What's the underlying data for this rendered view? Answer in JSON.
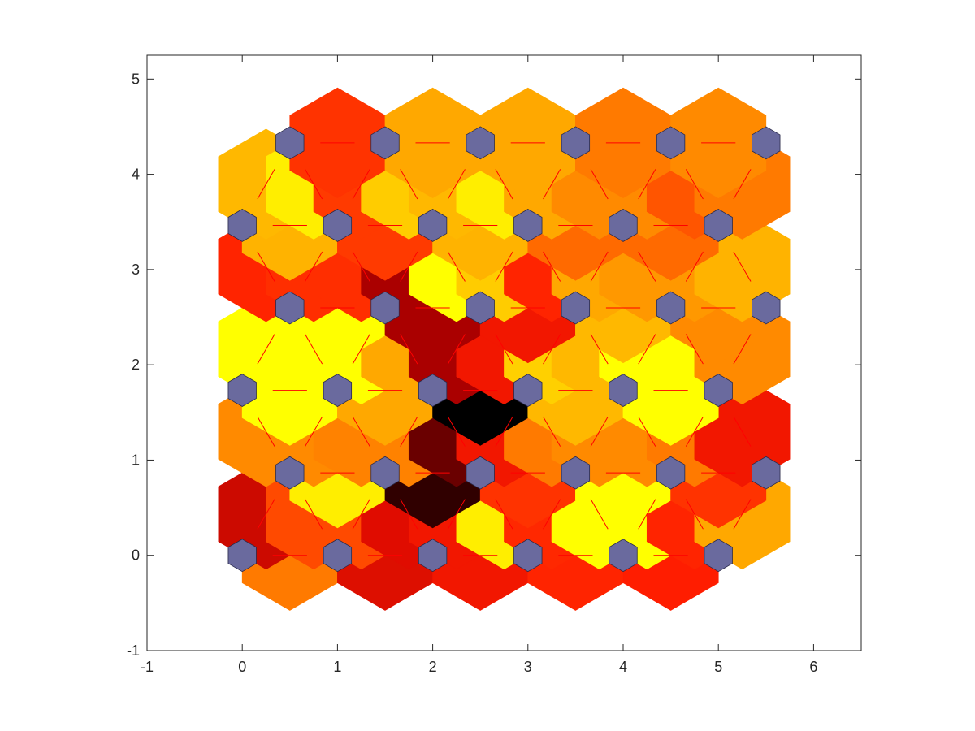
{
  "chart_data": {
    "type": "heatmap",
    "title": "",
    "xlabel": "",
    "ylabel": "",
    "xlim": [
      -1,
      6.5
    ],
    "ylim": [
      -1,
      5.25
    ],
    "xticks": [
      -1,
      0,
      1,
      2,
      3,
      4,
      5,
      6
    ],
    "yticks": [
      -1,
      0,
      1,
      2,
      3,
      4,
      5
    ],
    "grid": false,
    "neuron_color": "#6A6A9E",
    "line_color": "#FF0000",
    "neurons": [
      {
        "x": 0,
        "y": 0
      },
      {
        "x": 1,
        "y": 0
      },
      {
        "x": 2,
        "y": 0
      },
      {
        "x": 3,
        "y": 0
      },
      {
        "x": 4,
        "y": 0
      },
      {
        "x": 5,
        "y": 0
      },
      {
        "x": 0.5,
        "y": 0.866
      },
      {
        "x": 1.5,
        "y": 0.866
      },
      {
        "x": 2.5,
        "y": 0.866
      },
      {
        "x": 3.5,
        "y": 0.866
      },
      {
        "x": 4.5,
        "y": 0.866
      },
      {
        "x": 5.5,
        "y": 0.866
      },
      {
        "x": 0,
        "y": 1.732
      },
      {
        "x": 1,
        "y": 1.732
      },
      {
        "x": 2,
        "y": 1.732
      },
      {
        "x": 3,
        "y": 1.732
      },
      {
        "x": 4,
        "y": 1.732
      },
      {
        "x": 5,
        "y": 1.732
      },
      {
        "x": 0.5,
        "y": 2.598
      },
      {
        "x": 1.5,
        "y": 2.598
      },
      {
        "x": 2.5,
        "y": 2.598
      },
      {
        "x": 3.5,
        "y": 2.598
      },
      {
        "x": 4.5,
        "y": 2.598
      },
      {
        "x": 5.5,
        "y": 2.598
      },
      {
        "x": 0,
        "y": 3.464
      },
      {
        "x": 1,
        "y": 3.464
      },
      {
        "x": 2,
        "y": 3.464
      },
      {
        "x": 3,
        "y": 3.464
      },
      {
        "x": 4,
        "y": 3.464
      },
      {
        "x": 5,
        "y": 3.464
      },
      {
        "x": 0.5,
        "y": 4.33
      },
      {
        "x": 1.5,
        "y": 4.33
      },
      {
        "x": 2.5,
        "y": 4.33
      },
      {
        "x": 3.5,
        "y": 4.33
      },
      {
        "x": 4.5,
        "y": 4.33
      },
      {
        "x": 5.5,
        "y": 4.33
      }
    ],
    "cells": [
      {
        "x": 0.5,
        "y": 0,
        "color": "#FF7A00"
      },
      {
        "x": 1.5,
        "y": 0,
        "color": "#DD0F00"
      },
      {
        "x": 2.5,
        "y": 0,
        "color": "#F21700"
      },
      {
        "x": 3.5,
        "y": 0,
        "color": "#FF2400"
      },
      {
        "x": 4.5,
        "y": 0,
        "color": "#FF1D00"
      },
      {
        "x": 0.25,
        "y": 0.433,
        "color": "#CC0A00"
      },
      {
        "x": 0.75,
        "y": 0.433,
        "color": "#FF4A00"
      },
      {
        "x": 1.25,
        "y": 0.433,
        "color": "#FF4A00"
      },
      {
        "x": 1.75,
        "y": 0.433,
        "color": "#E00C00"
      },
      {
        "x": 2.25,
        "y": 0.433,
        "color": "#F21700"
      },
      {
        "x": 2.75,
        "y": 0.433,
        "color": "#FFEE00"
      },
      {
        "x": 3.25,
        "y": 0.433,
        "color": "#FF2800"
      },
      {
        "x": 3.75,
        "y": 0.433,
        "color": "#FFFF00"
      },
      {
        "x": 4.25,
        "y": 0.433,
        "color": "#FFFF00"
      },
      {
        "x": 4.75,
        "y": 0.433,
        "color": "#FF2400"
      },
      {
        "x": 5.25,
        "y": 0.433,
        "color": "#FFA800"
      },
      {
        "x": 1,
        "y": 0.866,
        "color": "#FFEE00"
      },
      {
        "x": 2,
        "y": 0.866,
        "color": "#300000"
      },
      {
        "x": 3,
        "y": 0.866,
        "color": "#FF3300"
      },
      {
        "x": 4,
        "y": 0.866,
        "color": "#FFFF00"
      },
      {
        "x": 5,
        "y": 0.866,
        "color": "#FF3300"
      },
      {
        "x": 0.25,
        "y": 1.299,
        "color": "#FF8A00"
      },
      {
        "x": 0.75,
        "y": 1.299,
        "color": "#FF8A00"
      },
      {
        "x": 1.25,
        "y": 1.299,
        "color": "#FF8200"
      },
      {
        "x": 1.75,
        "y": 1.299,
        "color": "#FF8200"
      },
      {
        "x": 2.25,
        "y": 1.299,
        "color": "#6A0000"
      },
      {
        "x": 2.75,
        "y": 1.299,
        "color": "#F21700"
      },
      {
        "x": 3.25,
        "y": 1.299,
        "color": "#FF7A00"
      },
      {
        "x": 3.75,
        "y": 1.299,
        "color": "#FF8A00"
      },
      {
        "x": 4.25,
        "y": 1.299,
        "color": "#FF8A00"
      },
      {
        "x": 4.75,
        "y": 1.299,
        "color": "#FF7A00"
      },
      {
        "x": 5.25,
        "y": 1.299,
        "color": "#F21700"
      },
      {
        "x": 0.5,
        "y": 1.732,
        "color": "#FFFF00"
      },
      {
        "x": 1.5,
        "y": 1.732,
        "color": "#FFA800"
      },
      {
        "x": 2.5,
        "y": 1.732,
        "color": "#000000"
      },
      {
        "x": 3.5,
        "y": 1.732,
        "color": "#FFB800"
      },
      {
        "x": 4.5,
        "y": 1.732,
        "color": "#FFFF00"
      },
      {
        "x": 0.25,
        "y": 2.165,
        "color": "#FFFF00"
      },
      {
        "x": 0.75,
        "y": 2.165,
        "color": "#FFFF00"
      },
      {
        "x": 1.25,
        "y": 2.165,
        "color": "#FFFF00"
      },
      {
        "x": 1.75,
        "y": 2.165,
        "color": "#FFA800"
      },
      {
        "x": 2.25,
        "y": 2.165,
        "color": "#AA0000"
      },
      {
        "x": 2.75,
        "y": 2.165,
        "color": "#F21700"
      },
      {
        "x": 3.25,
        "y": 2.165,
        "color": "#FFD000"
      },
      {
        "x": 3.75,
        "y": 2.165,
        "color": "#FFB800"
      },
      {
        "x": 4.25,
        "y": 2.165,
        "color": "#FFFF00"
      },
      {
        "x": 4.75,
        "y": 2.165,
        "color": "#FFFF00"
      },
      {
        "x": 5.25,
        "y": 2.165,
        "color": "#FF8A00"
      },
      {
        "x": 1,
        "y": 2.598,
        "color": "#FFFF00"
      },
      {
        "x": 2,
        "y": 2.598,
        "color": "#AA0000"
      },
      {
        "x": 3,
        "y": 2.598,
        "color": "#F21700"
      },
      {
        "x": 4,
        "y": 2.598,
        "color": "#FFB800"
      },
      {
        "x": 5,
        "y": 2.598,
        "color": "#FF8A00"
      },
      {
        "x": 0.25,
        "y": 3.031,
        "color": "#FF2400"
      },
      {
        "x": 0.75,
        "y": 3.031,
        "color": "#FF2E00"
      },
      {
        "x": 1.25,
        "y": 3.031,
        "color": "#FF2E00"
      },
      {
        "x": 1.75,
        "y": 3.031,
        "color": "#AA0000"
      },
      {
        "x": 2.25,
        "y": 3.031,
        "color": "#FFFF00"
      },
      {
        "x": 2.75,
        "y": 3.031,
        "color": "#FFCC00"
      },
      {
        "x": 3.25,
        "y": 3.031,
        "color": "#FF2400"
      },
      {
        "x": 3.75,
        "y": 3.031,
        "color": "#FFA800"
      },
      {
        "x": 4.25,
        "y": 3.031,
        "color": "#FF9800"
      },
      {
        "x": 4.75,
        "y": 3.031,
        "color": "#FF9800"
      },
      {
        "x": 5.25,
        "y": 3.031,
        "color": "#FFB300"
      },
      {
        "x": 0.5,
        "y": 3.464,
        "color": "#FFB300"
      },
      {
        "x": 1.5,
        "y": 3.464,
        "color": "#FF3A00"
      },
      {
        "x": 2.5,
        "y": 3.464,
        "color": "#FFB300"
      },
      {
        "x": 3.5,
        "y": 3.464,
        "color": "#FF6A00"
      },
      {
        "x": 4.5,
        "y": 3.464,
        "color": "#FF6A00"
      },
      {
        "x": 0.25,
        "y": 3.897,
        "color": "#FFB800"
      },
      {
        "x": 0.75,
        "y": 3.897,
        "color": "#FFEE00"
      },
      {
        "x": 1.25,
        "y": 3.897,
        "color": "#FF3A00"
      },
      {
        "x": 1.75,
        "y": 3.897,
        "color": "#FFCC00"
      },
      {
        "x": 2.25,
        "y": 3.897,
        "color": "#FFB800"
      },
      {
        "x": 2.75,
        "y": 3.897,
        "color": "#FFEE00"
      },
      {
        "x": 3.25,
        "y": 3.897,
        "color": "#FFA800"
      },
      {
        "x": 3.75,
        "y": 3.897,
        "color": "#FF8A00"
      },
      {
        "x": 4.25,
        "y": 3.897,
        "color": "#FF8A00"
      },
      {
        "x": 4.75,
        "y": 3.897,
        "color": "#FF5500"
      },
      {
        "x": 5.25,
        "y": 3.897,
        "color": "#FF7A00"
      },
      {
        "x": 1,
        "y": 4.33,
        "color": "#FF3300"
      },
      {
        "x": 2,
        "y": 4.33,
        "color": "#FFA800"
      },
      {
        "x": 3,
        "y": 4.33,
        "color": "#FFA800"
      },
      {
        "x": 4,
        "y": 4.33,
        "color": "#FF7A00"
      },
      {
        "x": 5,
        "y": 4.33,
        "color": "#FF8A00"
      }
    ]
  }
}
